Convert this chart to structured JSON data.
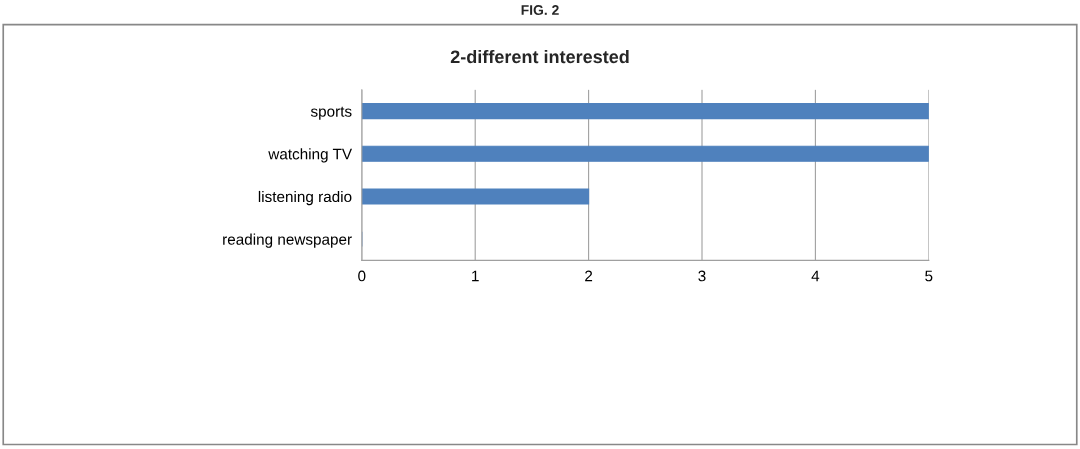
{
  "chart_data": {
    "type": "bar",
    "orientation": "horizontal",
    "title": "2-different interested",
    "annotations": [
      "FIG. 2"
    ],
    "categories": [
      "sports",
      "watching TV",
      "listening radio",
      "reading newspaper"
    ],
    "values": [
      5,
      5,
      2,
      0
    ],
    "color": "#4f81bd",
    "xlim": [
      0,
      5
    ],
    "xticks": [
      0,
      1,
      2,
      3,
      4,
      5
    ],
    "grid": "x"
  }
}
